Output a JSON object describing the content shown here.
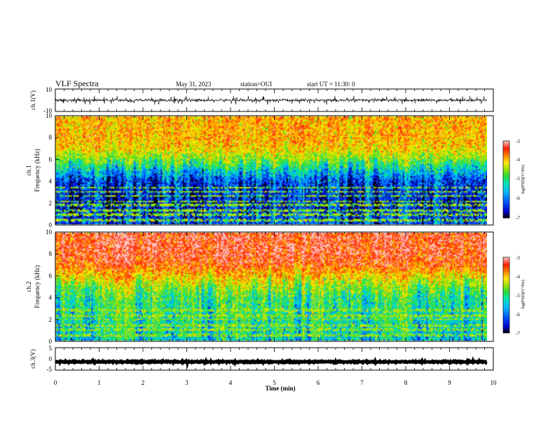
{
  "header": {
    "title": "VLF Spectra",
    "date": "May 31, 2023",
    "station": "station=OUI",
    "start": "start  UT =  11:30: 0"
  },
  "chart_data": [
    {
      "type": "line",
      "name": "ch1-waveform",
      "ylabel": "ch.1(V)",
      "ylim": [
        -10,
        10
      ],
      "yticks": [
        "10",
        "-10"
      ],
      "xlim": [
        0,
        9.85
      ],
      "description_series": {
        "center": 0,
        "amplitude_typical": 1.2,
        "spikes_to": [
          -4,
          4
        ]
      }
    },
    {
      "type": "heatmap",
      "name": "ch1-spectrogram",
      "ylabel_top": "ch.1",
      "ylabel": "Frequency (kHz)",
      "ylim": [
        0,
        10
      ],
      "yticks": [
        "0",
        "2",
        "4",
        "6",
        "8",
        "10"
      ],
      "xlim": [
        0,
        9.85
      ],
      "cbar_label": "log(PSD)(V²/Hz)",
      "cbar_range": [
        -7,
        -3
      ],
      "cbar_ticks": [
        "-3",
        "-4",
        "-5",
        "-6",
        "-7"
      ],
      "profile_khz_to_logpsd": [
        [
          0,
          -6.2
        ],
        [
          2,
          -6.5
        ],
        [
          4,
          -6.3
        ],
        [
          5,
          -5.6
        ],
        [
          6,
          -4.8
        ],
        [
          7,
          -4.2
        ],
        [
          8,
          -4.0
        ],
        [
          10,
          -4.0
        ]
      ],
      "tonal_lines_khz": [
        0.4,
        0.9,
        1.3,
        1.8,
        2.1,
        2.6,
        3.0,
        3.4
      ]
    },
    {
      "type": "heatmap",
      "name": "ch2-spectrogram",
      "ylabel_top": "ch.2",
      "ylabel": "Frequency (kHz)",
      "ylim": [
        0,
        10
      ],
      "yticks": [
        "0",
        "2",
        "4",
        "6",
        "8",
        "10"
      ],
      "xlim": [
        0,
        9.85
      ],
      "cbar_label": "log(PSD)(V²/Hz)",
      "cbar_range": [
        -7,
        -3
      ],
      "cbar_ticks": [
        "-3",
        "-4",
        "-5",
        "-6",
        "-7"
      ],
      "profile_khz_to_logpsd": [
        [
          0,
          -5.6
        ],
        [
          2,
          -5.4
        ],
        [
          4,
          -5.2
        ],
        [
          5,
          -4.8
        ],
        [
          6,
          -4.2
        ],
        [
          7,
          -3.6
        ],
        [
          8,
          -3.4
        ],
        [
          10,
          -3.4
        ]
      ],
      "tonal_lines_khz": [
        0.5,
        1.0,
        1.4,
        2.0,
        2.3,
        2.8
      ]
    },
    {
      "type": "line",
      "name": "ch3-waveform",
      "ylabel": "ch.3(V)",
      "ylim": [
        -5,
        5
      ],
      "yticks": [
        "5",
        "0",
        "-5"
      ],
      "xlim": [
        0,
        9.85
      ],
      "description_series": {
        "center": -1.3,
        "amplitude_typical": 0.2
      }
    }
  ],
  "xaxis": {
    "label": "Time (min)",
    "ticks": [
      "0",
      "1",
      "2",
      "3",
      "4",
      "5",
      "6",
      "7",
      "8",
      "9",
      "10"
    ],
    "range": [
      0,
      10
    ]
  },
  "colors": {
    "frame": "#000000",
    "trace": "#000000",
    "colormap": [
      "#000000",
      "#0000c8",
      "#0050ff",
      "#00b4ff",
      "#00e6b4",
      "#32dc32",
      "#b4e600",
      "#ffe600",
      "#ff8c00",
      "#ff1e00",
      "#ffc8c8"
    ]
  }
}
